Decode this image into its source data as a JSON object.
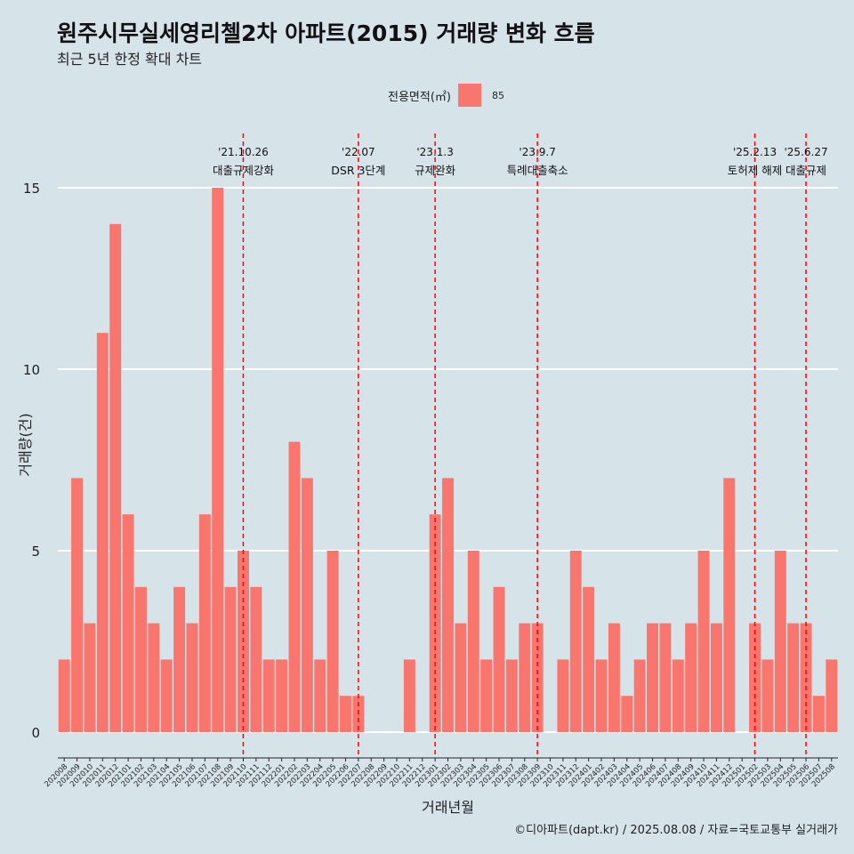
{
  "header": {
    "title": "원주시무실세영리첼2차 아파트(2015) 거래량 변화 흐름",
    "subtitle": "최근 5년 한정 확대 차트"
  },
  "legend": {
    "title": "전용면적(㎡)",
    "label": "85",
    "color": "#f8766d"
  },
  "caption": "©디아파트(dapt.kr) / 2025.08.08 / 자료=국토교통부 실거래가",
  "chart_data": {
    "type": "bar",
    "title": "원주시무실세영리첼2차 아파트(2015) 거래량 변화 흐름",
    "xlabel": "거래년월",
    "ylabel": "거래량(건)",
    "ylim": [
      0,
      15
    ],
    "yticks": [
      0,
      5,
      10,
      15
    ],
    "grid": true,
    "legend_position": "top",
    "bar_color": "#f8766d",
    "background": "#d6e4ea",
    "categories": [
      "202008",
      "202009",
      "202010",
      "202011",
      "202012",
      "202101",
      "202102",
      "202103",
      "202104",
      "202105",
      "202106",
      "202107",
      "202108",
      "202109",
      "202110",
      "202111",
      "202112",
      "202201",
      "202202",
      "202203",
      "202204",
      "202205",
      "202206",
      "202207",
      "202208",
      "202209",
      "202210",
      "202211",
      "202212",
      "202301",
      "202302",
      "202303",
      "202304",
      "202305",
      "202306",
      "202307",
      "202308",
      "202309",
      "202310",
      "202311",
      "202312",
      "202401",
      "202402",
      "202403",
      "202404",
      "202405",
      "202406",
      "202407",
      "202408",
      "202409",
      "202410",
      "202411",
      "202412",
      "202501",
      "202502",
      "202503",
      "202504",
      "202505",
      "202506",
      "202507",
      "202508"
    ],
    "series": [
      {
        "name": "85",
        "values": [
          2,
          7,
          3,
          11,
          14,
          6,
          4,
          3,
          2,
          4,
          3,
          6,
          15,
          4,
          5,
          4,
          2,
          2,
          8,
          7,
          2,
          5,
          1,
          1,
          0,
          0,
          0,
          2,
          0,
          6,
          7,
          3,
          5,
          2,
          4,
          2,
          3,
          3,
          0,
          2,
          5,
          4,
          2,
          3,
          1,
          2,
          3,
          3,
          2,
          3,
          5,
          3,
          7,
          0,
          3,
          2,
          5,
          3,
          3,
          1,
          2
        ]
      }
    ],
    "events": [
      {
        "date": "'21.10.26",
        "label": "대출규제강화",
        "at": "202110"
      },
      {
        "date": "'22.07",
        "label": "DSR 3단계",
        "at": "202207"
      },
      {
        "date": "'23.1.3",
        "label": "규제완화",
        "at": "202301"
      },
      {
        "date": "'23.9.7",
        "label": "특례대출축소",
        "at": "202309"
      },
      {
        "date": "'25.2.13",
        "label": "토허제 해제",
        "at": "202502"
      },
      {
        "date": "'25.6.27",
        "label": "대출규제",
        "at": "202506"
      }
    ],
    "event_color": "#ff0000"
  }
}
